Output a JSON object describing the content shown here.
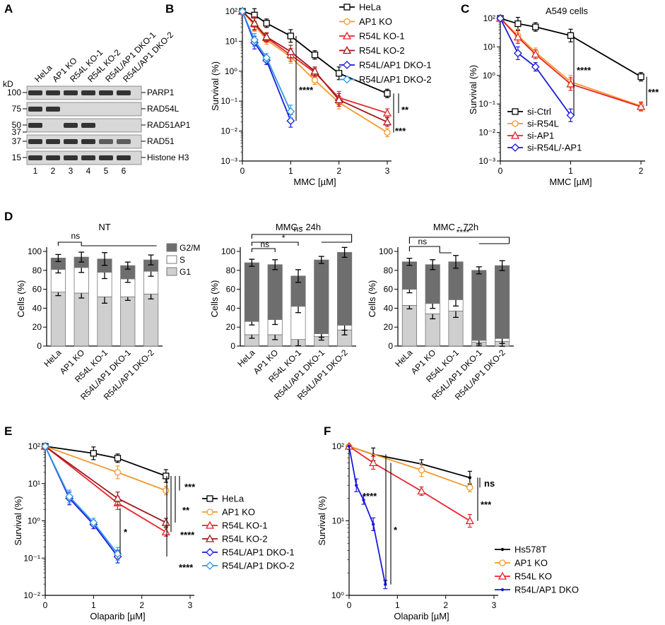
{
  "colors": {
    "black": "#000000",
    "orange": "#f39a2b",
    "red": "#e8232a",
    "darkred": "#a0181c",
    "blue": "#1a1adb",
    "lightblue": "#2d97e6",
    "g2m": "#6e6e6e",
    "s": "#ffffff",
    "g1": "#cfcfcf"
  },
  "panels": {
    "A": "A",
    "B": "B",
    "C": "C",
    "D": "D",
    "E": "E",
    "F": "F"
  },
  "blot": {
    "kd_label": "kD",
    "columns": [
      "HeLa",
      "AP1 KO",
      "R54L KO-1",
      "R54L KO-2",
      "R54L/AP1 DKO-1",
      "R54L/AP1 DKO-2"
    ],
    "lanes": [
      "1",
      "2",
      "3",
      "4",
      "5",
      "6"
    ],
    "rows": [
      {
        "label": "PARP1",
        "marker": "100",
        "bands": [
          1,
          1,
          1,
          1,
          1,
          1
        ]
      },
      {
        "label": "RAD54L",
        "marker": "75",
        "bands": [
          1,
          1,
          0,
          0,
          0,
          0
        ]
      },
      {
        "label": "RAD51AP1",
        "marker": "50",
        "marker2": "37",
        "bands": [
          1,
          0,
          1,
          1,
          0,
          0
        ]
      },
      {
        "label": "RAD51",
        "marker": "37",
        "bands": [
          1,
          1,
          1,
          1,
          0.6,
          0.6
        ]
      },
      {
        "label": "Histone H3",
        "marker": "15",
        "bands": [
          1,
          1,
          1,
          1,
          1,
          1
        ]
      }
    ]
  },
  "chart_data": [
    {
      "panel": "B",
      "type": "line",
      "title": "",
      "xlabel": "MMC [µM]",
      "ylabel": "Survival (%)",
      "yscale": "log",
      "xlim": [
        0,
        3
      ],
      "ylim": [
        0.001,
        100
      ],
      "xticks": [
        "0",
        "1",
        "2",
        "3"
      ],
      "yticks": [
        "10⁻³",
        "10⁻²",
        "10⁻¹",
        "10⁰",
        "10¹",
        "10²"
      ],
      "series": [
        {
          "name": "HeLa",
          "color": "#000000",
          "marker": "square",
          "x": [
            0,
            0.25,
            0.5,
            1,
            1.5,
            2,
            3
          ],
          "y": [
            100,
            75,
            40,
            15,
            3.5,
            0.85,
            0.18
          ]
        },
        {
          "name": "AP1 KO",
          "color": "#f39a2b",
          "marker": "circle",
          "x": [
            0,
            0.25,
            0.5,
            1,
            1.5,
            2,
            3
          ],
          "y": [
            100,
            35,
            11,
            3,
            0.5,
            0.09,
            0.009
          ]
        },
        {
          "name": "R54L KO-1",
          "color": "#e8232a",
          "marker": "triangle",
          "x": [
            0,
            0.25,
            0.5,
            1,
            1.5,
            2,
            3
          ],
          "y": [
            100,
            38,
            13,
            3.5,
            0.9,
            0.13,
            0.04
          ]
        },
        {
          "name": "R54L KO-2",
          "color": "#a0181c",
          "marker": "triangle",
          "x": [
            0,
            0.25,
            0.5,
            1,
            1.5,
            2,
            3
          ],
          "y": [
            100,
            40,
            14,
            4.5,
            1,
            0.11,
            0.02
          ]
        },
        {
          "name": "R54L/AP1 DKO-1",
          "color": "#1a1adb",
          "marker": "diamond",
          "x": [
            0,
            0.25,
            0.5,
            1
          ],
          "y": [
            100,
            9,
            2.3,
            0.022
          ]
        },
        {
          "name": "R54L/AP1 DKO-2",
          "color": "#2d97e6",
          "marker": "diamond",
          "x": [
            0,
            0.25,
            0.5,
            1
          ],
          "y": [
            100,
            11,
            2.8,
            0.045
          ]
        }
      ],
      "significance": [
        "****",
        "**",
        "***"
      ]
    },
    {
      "panel": "C",
      "type": "line",
      "title": "A549 cells",
      "xlabel": "MMC [µM]",
      "ylabel": "Survival (%)",
      "yscale": "log",
      "xlim": [
        0,
        2
      ],
      "ylim": [
        0.001,
        100
      ],
      "xticks": [
        "0",
        "1",
        "2"
      ],
      "yticks": [
        "10⁻³",
        "10⁻²",
        "10⁻¹",
        "10⁰",
        "10¹",
        "10²"
      ],
      "series": [
        {
          "name": "si-Ctrl",
          "color": "#000000",
          "marker": "square",
          "x": [
            0,
            0.25,
            0.5,
            1,
            2
          ],
          "y": [
            100,
            65,
            50,
            25,
            0.9
          ]
        },
        {
          "name": "si-R54L",
          "color": "#f39a2b",
          "marker": "circle",
          "x": [
            0,
            0.25,
            0.5,
            1,
            2
          ],
          "y": [
            100,
            25,
            6.5,
            0.6,
            0.085
          ]
        },
        {
          "name": "si-AP1",
          "color": "#e8232a",
          "marker": "triangle",
          "x": [
            0,
            0.25,
            0.5,
            1,
            2
          ],
          "y": [
            100,
            22,
            5.5,
            0.5,
            0.08
          ]
        },
        {
          "name": "si-R54L/-AP1",
          "color": "#1a1adb",
          "marker": "diamond",
          "x": [
            0,
            0.25,
            0.5,
            1
          ],
          "y": [
            100,
            6,
            2,
            0.04
          ]
        }
      ],
      "significance": [
        "****",
        "***"
      ]
    },
    {
      "panel": "D-NT",
      "type": "bar",
      "title": "NT",
      "stacked": true,
      "ylabel": "Cells (%)",
      "ylim": [
        0,
        100
      ],
      "yticks": [
        "0",
        "20",
        "40",
        "60",
        "80",
        "100"
      ],
      "categories": [
        "HeLa",
        "AP1 KO",
        "R54L KO-1",
        "R54L/AP1 DKO-1",
        "R54L/AP1 DKO-2"
      ],
      "series": [
        {
          "name": "G1",
          "values": [
            57,
            56,
            52,
            52,
            55
          ]
        },
        {
          "name": "S",
          "values": [
            24,
            27,
            26,
            19,
            24
          ]
        },
        {
          "name": "G2/M",
          "values": [
            12,
            11,
            14,
            14,
            12
          ]
        }
      ],
      "legend": [
        "G2/M",
        "S",
        "G1"
      ],
      "significance": [
        "ns"
      ]
    },
    {
      "panel": "D-24h",
      "type": "bar",
      "title": "MMC - 24h",
      "stacked": true,
      "ylabel": "Cells (%)",
      "ylim": [
        0,
        100
      ],
      "yticks": [
        "0",
        "20",
        "40",
        "60",
        "80",
        "100"
      ],
      "categories": [
        "HeLa",
        "AP1 KO",
        "R54L KO-1",
        "R54L/AP1 DKO-1",
        "R54L/AP1 DKO-2"
      ],
      "series": [
        {
          "name": "G1",
          "values": [
            12,
            12,
            7,
            10,
            17
          ]
        },
        {
          "name": "S",
          "values": [
            14,
            16,
            35,
            3,
            5
          ]
        },
        {
          "name": "G2/M",
          "values": [
            62,
            58,
            32,
            78,
            77
          ]
        }
      ],
      "significance": [
        "ns",
        "*",
        "ns"
      ]
    },
    {
      "panel": "D-72h",
      "type": "bar",
      "title": "MMC - 72h",
      "stacked": true,
      "ylabel": "Cells (%)",
      "ylim": [
        0,
        100
      ],
      "yticks": [
        "0",
        "20",
        "40",
        "60",
        "80",
        "100"
      ],
      "categories": [
        "HeLa",
        "AP1 KO",
        "R54L KO-1",
        "R54L/AP1 DKO-1",
        "R54L/AP1 DKO-2"
      ],
      "series": [
        {
          "name": "G1",
          "values": [
            43,
            34,
            37,
            4,
            5
          ]
        },
        {
          "name": "S",
          "values": [
            17,
            11,
            12,
            2,
            3
          ]
        },
        {
          "name": "G2/M",
          "values": [
            29,
            41,
            40,
            74,
            77
          ]
        }
      ],
      "significance": [
        "****",
        "ns"
      ]
    },
    {
      "panel": "E",
      "type": "line",
      "title": "",
      "xlabel": "Olaparib [µM]",
      "ylabel": "Survival (%)",
      "yscale": "log",
      "xlim": [
        0,
        3
      ],
      "ylim": [
        0.01,
        100
      ],
      "xticks": [
        "0",
        "1",
        "2",
        "3"
      ],
      "yticks": [
        "10⁻²",
        "10⁻¹",
        "10⁰",
        "10¹",
        "10²"
      ],
      "series": [
        {
          "name": "HeLa",
          "color": "#000000",
          "marker": "square",
          "x": [
            0,
            1,
            1.5,
            2.5
          ],
          "y": [
            100,
            65,
            48,
            16
          ]
        },
        {
          "name": "AP1 KO",
          "color": "#f39a2b",
          "marker": "circle",
          "x": [
            0,
            1.5,
            2.5
          ],
          "y": [
            100,
            20,
            6.5
          ]
        },
        {
          "name": "R54L KO-1",
          "color": "#e8232a",
          "marker": "triangle",
          "x": [
            0,
            1.5,
            2.5
          ],
          "y": [
            100,
            3,
            0.5
          ]
        },
        {
          "name": "R54L KO-2",
          "color": "#a0181c",
          "marker": "triangle",
          "x": [
            0,
            1.5,
            2.5
          ],
          "y": [
            100,
            4,
            0.9
          ]
        },
        {
          "name": "R54L/AP1 DKO-1",
          "color": "#1a1adb",
          "marker": "diamond",
          "x": [
            0,
            0.5,
            1,
            1.5
          ],
          "y": [
            100,
            4,
            0.8,
            0.11
          ]
        },
        {
          "name": "R54L/AP1 DKO-2",
          "color": "#2d97e6",
          "marker": "diamond",
          "x": [
            0,
            0.5,
            1,
            1.5
          ],
          "y": [
            100,
            4.5,
            0.9,
            0.13
          ]
        }
      ],
      "significance": [
        "***",
        "**",
        "****",
        "****",
        "*"
      ]
    },
    {
      "panel": "F",
      "type": "line",
      "title": "",
      "xlabel": "Olaparib [µM]",
      "ylabel": "Survival (%)",
      "yscale": "log",
      "xlim": [
        0,
        3
      ],
      "ylim": [
        1,
        100
      ],
      "xticks": [
        "0",
        "1",
        "2",
        "3"
      ],
      "yticks": [
        "10⁰",
        "10¹",
        "10²"
      ],
      "series": [
        {
          "name": "Hs578T",
          "color": "#000000",
          "marker": "dot",
          "x": [
            0,
            0.5,
            1.5,
            2.5
          ],
          "y": [
            100,
            78,
            58,
            38
          ]
        },
        {
          "name": "AP1 KO",
          "color": "#f39a2b",
          "marker": "circle",
          "x": [
            0,
            1.5,
            2.5
          ],
          "y": [
            100,
            48,
            28
          ]
        },
        {
          "name": "R54L KO",
          "color": "#e8232a",
          "marker": "triangle",
          "x": [
            0,
            0.5,
            1.5,
            2.5
          ],
          "y": [
            100,
            60,
            25,
            10
          ]
        },
        {
          "name": "R54L/AP1 DKO",
          "color": "#1a1adb",
          "marker": "dot",
          "x": [
            0,
            0.15,
            0.3,
            0.5,
            0.75
          ],
          "y": [
            100,
            30,
            19,
            9,
            1.4
          ]
        }
      ],
      "significance": [
        "ns",
        "***",
        "****",
        "*"
      ]
    }
  ]
}
